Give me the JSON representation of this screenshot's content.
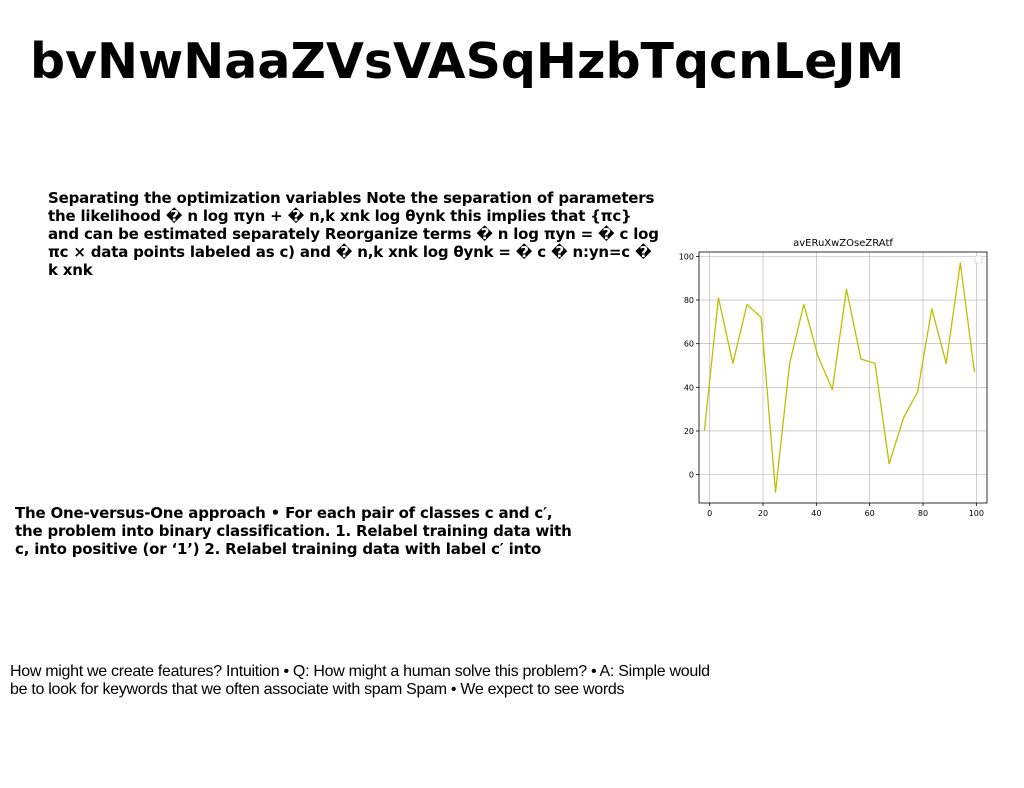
{
  "title": "bvNwNaaZVsVASqHzbTqcnLeJM",
  "paragraphs": [
    "Separating the optimization variables Note the separation of parameters the likelihood � n log πyn + � n,k xnk log θynk this implies that {πc} and can be estimated separately Reorganize terms � n log πyn = � c log πc × data points labeled as c) and � n,k xnk log θynk = � c � n:yn=c � k xnk",
    "The One-versus-One approach • For each pair of classes c and c′, the problem into binary classification. 1. Relabel training data with c, into positive (or ‘1’) 2. Relabel training data with label c′ into",
    "How might we create features? Intuition • Q: How might a human solve this problem? • A: Simple would be to look for keywords that we often associate with spam Spam • We expect to see words"
  ],
  "chart_data": {
    "type": "line",
    "title": "avERuXwZOseZRAtf",
    "xlabel": "",
    "ylabel": "",
    "xlim": [
      -4,
      104
    ],
    "ylim": [
      -13,
      102
    ],
    "x_ticks": [
      0,
      20,
      40,
      60,
      80,
      100
    ],
    "y_ticks": [
      0,
      20,
      40,
      60,
      80,
      100
    ],
    "grid": true,
    "legend": "top-right (empty)",
    "series": [
      {
        "color": "#bfbf00",
        "x": [
          -2,
          3.3,
          8.7,
          14,
          19.3,
          24.7,
          30,
          35.3,
          40.7,
          46,
          51.3,
          56.7,
          62,
          67.3,
          72.7,
          78,
          83.3,
          88.7,
          94,
          99.3
        ],
        "y": [
          20,
          81,
          51,
          78,
          72,
          -8,
          51,
          78,
          54,
          39,
          85,
          53,
          51,
          5,
          26,
          38,
          76,
          51,
          97,
          47
        ]
      }
    ]
  }
}
